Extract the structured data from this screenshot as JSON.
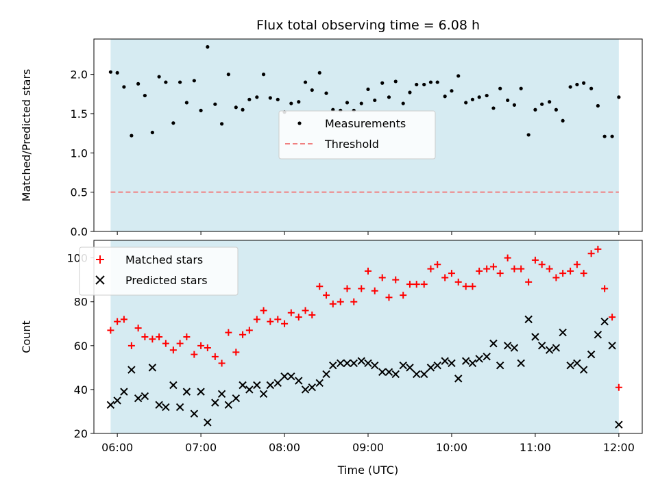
{
  "chart_data": [
    {
      "type": "scatter",
      "title": "Flux total observing time = 6.08 h",
      "xlabel": "",
      "ylabel": "Matched/Predicted stars",
      "ylim": [
        0,
        2.45
      ],
      "yticks": [
        0.0,
        0.5,
        1.0,
        1.5,
        2.0
      ],
      "ytick_labels": [
        "0.0",
        "0.5",
        "1.0",
        "1.5",
        "2.0"
      ],
      "xlim": [
        5.72,
        12.28
      ],
      "shade": [
        5.92,
        12.0
      ],
      "threshold": 0.5,
      "legend_position": "center",
      "legend": [
        {
          "label": "Measurements",
          "marker": "dot",
          "color": "#000000"
        },
        {
          "label": "Threshold",
          "marker": "dashed-line",
          "color": "#f08080"
        }
      ],
      "series": [
        {
          "name": "Measurements",
          "x": [
            5.92,
            6.0,
            6.08,
            6.17,
            6.25,
            6.33,
            6.42,
            6.5,
            6.58,
            6.67,
            6.75,
            6.83,
            6.92,
            7.0,
            7.08,
            7.17,
            7.25,
            7.33,
            7.42,
            7.5,
            7.58,
            7.67,
            7.75,
            7.83,
            7.92,
            8.0,
            8.08,
            8.17,
            8.25,
            8.33,
            8.42,
            8.5,
            8.58,
            8.67,
            8.75,
            8.83,
            8.92,
            9.0,
            9.08,
            9.17,
            9.25,
            9.33,
            9.42,
            9.5,
            9.58,
            9.67,
            9.75,
            9.83,
            9.92,
            10.0,
            10.08,
            10.17,
            10.25,
            10.33,
            10.42,
            10.5,
            10.58,
            10.67,
            10.75,
            10.83,
            10.92,
            11.0,
            11.08,
            11.17,
            11.25,
            11.33,
            11.42,
            11.5,
            11.58,
            11.67,
            11.75,
            11.83,
            11.92,
            12.0
          ],
          "values": [
            2.03,
            2.02,
            1.84,
            1.22,
            1.88,
            1.73,
            1.26,
            1.97,
            1.9,
            1.38,
            1.9,
            1.64,
            1.92,
            1.54,
            2.35,
            1.62,
            1.37,
            2.0,
            1.58,
            1.55,
            1.68,
            1.71,
            2.0,
            1.7,
            1.68,
            1.52,
            1.63,
            1.65,
            1.9,
            1.8,
            2.02,
            1.76,
            1.55,
            1.54,
            1.64,
            1.54,
            1.63,
            1.81,
            1.67,
            1.89,
            1.71,
            1.91,
            1.63,
            1.77,
            1.87,
            1.87,
            1.9,
            1.9,
            1.72,
            1.79,
            1.98,
            1.64,
            1.68,
            1.71,
            1.73,
            1.57,
            1.82,
            1.67,
            1.61,
            1.82,
            1.23,
            1.55,
            1.62,
            1.65,
            1.55,
            1.41,
            1.84,
            1.87,
            1.89,
            1.82,
            1.6,
            1.21,
            1.21,
            1.71
          ]
        }
      ]
    },
    {
      "type": "scatter",
      "title": "",
      "xlabel": "Time (UTC)",
      "ylabel": "Count",
      "ylim": [
        20,
        108
      ],
      "yticks": [
        20,
        40,
        60,
        80,
        100
      ],
      "ytick_labels": [
        "20",
        "40",
        "60",
        "80",
        "100"
      ],
      "xlim": [
        5.72,
        12.28
      ],
      "xticks": [
        6,
        7,
        8,
        9,
        10,
        11,
        12
      ],
      "xtick_labels": [
        "06:00",
        "07:00",
        "08:00",
        "09:00",
        "10:00",
        "11:00",
        "12:00"
      ],
      "shade": [
        5.92,
        12.0
      ],
      "legend_position": "top-left",
      "legend": [
        {
          "label": "Matched stars",
          "marker": "plus",
          "color": "#ff0000"
        },
        {
          "label": "Predicted stars",
          "marker": "x",
          "color": "#000000"
        }
      ],
      "series": [
        {
          "name": "Matched stars",
          "x": [
            5.92,
            6.0,
            6.08,
            6.17,
            6.25,
            6.33,
            6.42,
            6.5,
            6.58,
            6.67,
            6.75,
            6.83,
            6.92,
            7.0,
            7.08,
            7.17,
            7.25,
            7.33,
            7.42,
            7.5,
            7.58,
            7.67,
            7.75,
            7.83,
            7.92,
            8.0,
            8.08,
            8.17,
            8.25,
            8.33,
            8.42,
            8.5,
            8.58,
            8.67,
            8.75,
            8.83,
            8.92,
            9.0,
            9.08,
            9.17,
            9.25,
            9.33,
            9.42,
            9.5,
            9.58,
            9.67,
            9.75,
            9.83,
            9.92,
            10.0,
            10.08,
            10.17,
            10.25,
            10.33,
            10.42,
            10.5,
            10.58,
            10.67,
            10.75,
            10.83,
            10.92,
            11.0,
            11.08,
            11.17,
            11.25,
            11.33,
            11.42,
            11.5,
            11.58,
            11.67,
            11.75,
            11.83,
            11.92,
            12.0
          ],
          "values": [
            67,
            71,
            72,
            60,
            68,
            64,
            63,
            64,
            61,
            58,
            61,
            64,
            56,
            60,
            59,
            55,
            52,
            66,
            57,
            65,
            67,
            72,
            76,
            71,
            72,
            70,
            75,
            73,
            76,
            74,
            87,
            83,
            79,
            80,
            86,
            80,
            86,
            94,
            85,
            91,
            82,
            90,
            83,
            88,
            88,
            88,
            95,
            97,
            91,
            93,
            89,
            87,
            87,
            94,
            95,
            96,
            93,
            100,
            95,
            95,
            89,
            99,
            97,
            95,
            91,
            93,
            94,
            97,
            93,
            102,
            104,
            86,
            73,
            41
          ]
        },
        {
          "name": "Predicted stars",
          "x": [
            5.92,
            6.0,
            6.08,
            6.17,
            6.25,
            6.33,
            6.42,
            6.5,
            6.58,
            6.67,
            6.75,
            6.83,
            6.92,
            7.0,
            7.08,
            7.17,
            7.25,
            7.33,
            7.42,
            7.5,
            7.58,
            7.67,
            7.75,
            7.83,
            7.92,
            8.0,
            8.08,
            8.17,
            8.25,
            8.33,
            8.42,
            8.5,
            8.58,
            8.67,
            8.75,
            8.83,
            8.92,
            9.0,
            9.08,
            9.17,
            9.25,
            9.33,
            9.42,
            9.5,
            9.58,
            9.67,
            9.75,
            9.83,
            9.92,
            10.0,
            10.08,
            10.17,
            10.25,
            10.33,
            10.42,
            10.5,
            10.58,
            10.67,
            10.75,
            10.83,
            10.92,
            11.0,
            11.08,
            11.17,
            11.25,
            11.33,
            11.42,
            11.5,
            11.58,
            11.67,
            11.75,
            11.83,
            11.92,
            12.0
          ],
          "values": [
            33,
            35,
            39,
            49,
            36,
            37,
            50,
            33,
            32,
            42,
            32,
            39,
            29,
            39,
            25,
            34,
            38,
            33,
            36,
            42,
            40,
            42,
            38,
            42,
            43,
            46,
            46,
            44,
            40,
            41,
            43,
            47,
            51,
            52,
            52,
            52,
            53,
            52,
            51,
            48,
            48,
            47,
            51,
            50,
            47,
            47,
            50,
            51,
            53,
            52,
            45,
            53,
            52,
            54,
            55,
            61,
            51,
            60,
            59,
            52,
            72,
            64,
            60,
            58,
            59,
            66,
            51,
            52,
            49,
            56,
            65,
            71,
            60,
            24
          ]
        }
      ]
    }
  ]
}
